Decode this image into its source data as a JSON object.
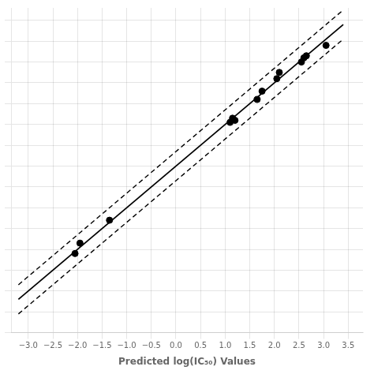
{
  "chart_data": {
    "type": "scatter",
    "xlabel": "Predicted log(IC₅₀) Values",
    "series": [
      {
        "type": "scatter",
        "marker": "circle",
        "color": "black",
        "x": [
          -2.05,
          -1.95,
          -1.35,
          1.1,
          1.15,
          1.2,
          1.65,
          1.75,
          2.05,
          2.1,
          2.55,
          2.6,
          2.65,
          3.05
        ],
        "values": [
          -2.1,
          -1.85,
          -1.3,
          1.05,
          1.15,
          1.1,
          1.6,
          1.8,
          2.1,
          2.25,
          2.5,
          2.6,
          2.65,
          2.9
        ]
      },
      {
        "type": "line",
        "line_style": "solid",
        "color": "black",
        "x": [
          -3.2,
          3.4
        ],
        "values": [
          -3.2,
          3.4
        ]
      },
      {
        "type": "line",
        "line_style": "dashed",
        "color": "black",
        "x": [
          -3.2,
          3.4
        ],
        "values": [
          -2.85,
          3.75
        ]
      },
      {
        "type": "line",
        "line_style": "dashed",
        "color": "black",
        "x": [
          -3.2,
          3.4
        ],
        "values": [
          -3.55,
          3.05
        ]
      }
    ],
    "xlim": [
      -3.35,
      3.8
    ],
    "ylim": [
      -4.0,
      3.8
    ],
    "xticks": [
      {
        "value": -3.0,
        "label": "−3.0"
      },
      {
        "value": -2.5,
        "label": "−2.5"
      },
      {
        "value": -2.0,
        "label": "−2.0"
      },
      {
        "value": -1.5,
        "label": "−1.5"
      },
      {
        "value": -1.0,
        "label": "−1.0"
      },
      {
        "value": -0.5,
        "label": "−0.5"
      },
      {
        "value": 0.0,
        "label": "0.0"
      },
      {
        "value": 0.5,
        "label": "0.5"
      },
      {
        "value": 1.0,
        "label": "1.0"
      },
      {
        "value": 1.5,
        "label": "1.5"
      },
      {
        "value": 2.0,
        "label": "2.0"
      },
      {
        "value": 2.5,
        "label": "2.5"
      },
      {
        "value": 3.0,
        "label": "3.0"
      },
      {
        "value": 3.5,
        "label": "3.5"
      }
    ],
    "yticks": [
      -4.0,
      -3.5,
      -3.0,
      -2.5,
      -2.0,
      -1.5,
      -1.0,
      -0.5,
      0.0,
      0.5,
      1.0,
      1.5,
      2.0,
      2.5,
      3.0,
      3.5
    ],
    "grid": true,
    "tick_labels": "x"
  }
}
